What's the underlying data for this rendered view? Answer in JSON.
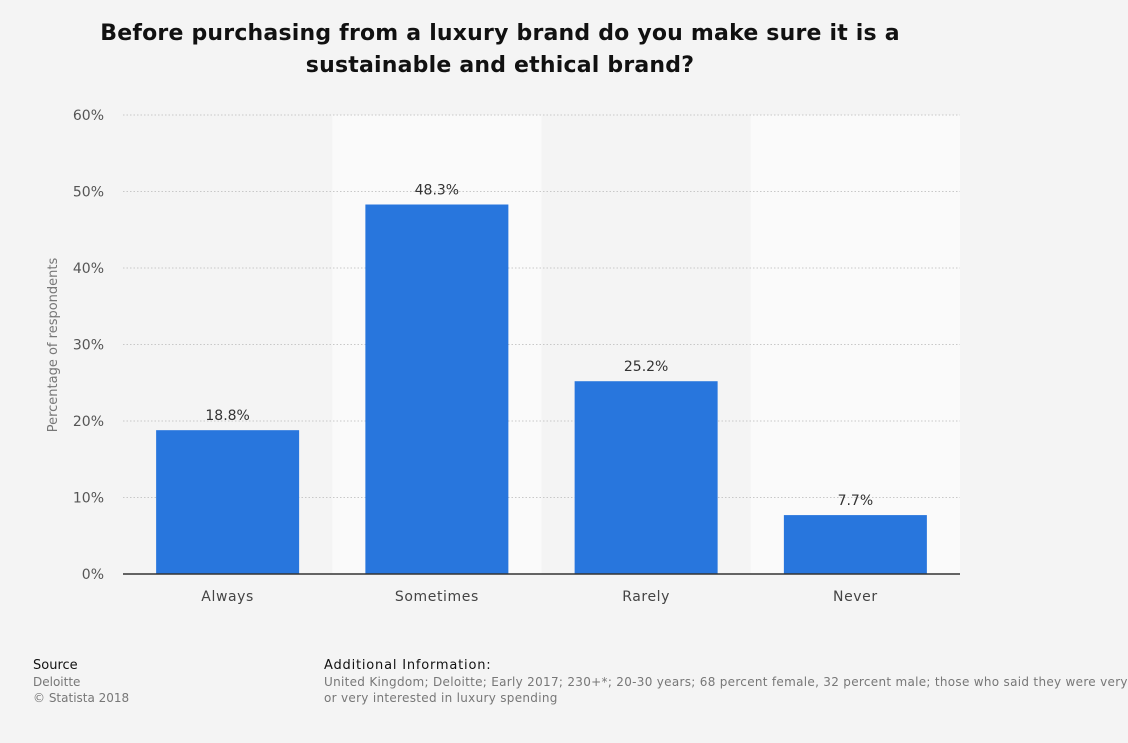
{
  "chart_data": {
    "type": "bar",
    "title": "Before purchasing from a luxury brand do you make sure it is a sustainable and ethical brand?",
    "categories": [
      "Always",
      "Sometimes",
      "Rarely",
      "Never"
    ],
    "values": [
      18.8,
      48.3,
      25.2,
      7.7
    ],
    "value_labels": [
      "18.8%",
      "48.3%",
      "25.2%",
      "7.7%"
    ],
    "xlabel": "",
    "ylabel": "Percentage of respondents",
    "ylim": [
      0,
      60
    ],
    "y_ticks": [
      0,
      10,
      20,
      30,
      40,
      50,
      60
    ],
    "y_tick_labels": [
      "0%",
      "10%",
      "20%",
      "30%",
      "40%",
      "50%",
      "60%"
    ],
    "grid": true,
    "legend": "none",
    "colors": {
      "bar": "#2876dd",
      "band_light": "#fafafa",
      "band_dark": "#f4f4f4",
      "grid": "#c8c8c8",
      "axis": "#333333"
    }
  },
  "footer": {
    "source_heading": "Source",
    "source_lines": [
      "Deloitte",
      "© Statista 2018"
    ],
    "info_heading": "Additional Information:",
    "info_lines": [
      "United Kingdom; Deloitte; Early 2017; 230+*; 20-30 years; 68 percent female, 32 percent male; those who said they were very",
      "or very interested in luxury spending"
    ]
  }
}
